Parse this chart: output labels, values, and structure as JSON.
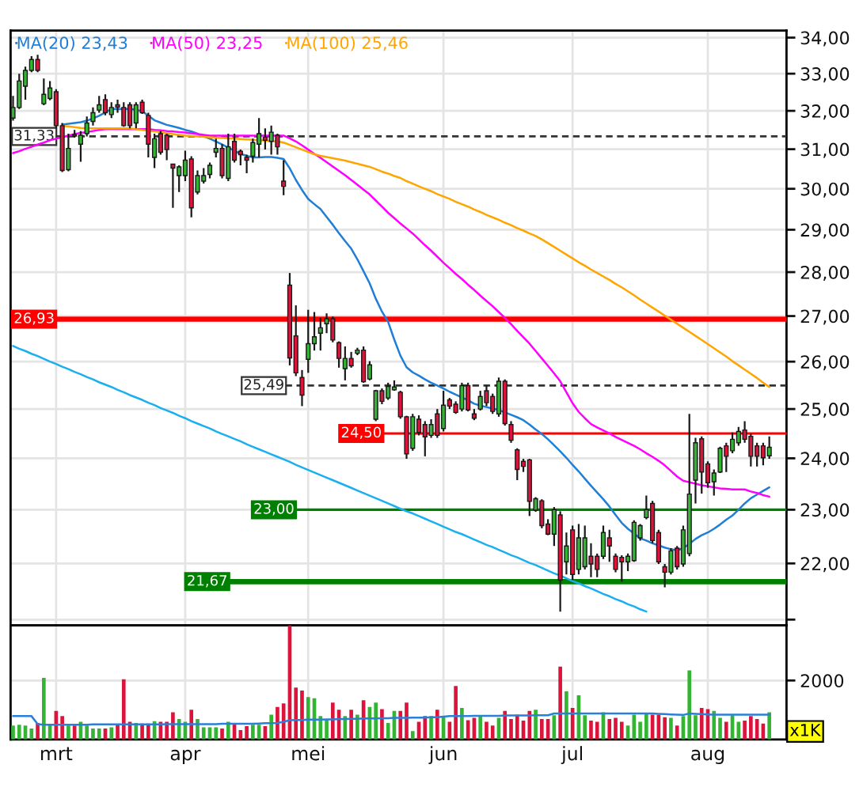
{
  "chart_data": [
    {
      "type": "candlestick",
      "categories": [
        null,
        null,
        null,
        null,
        null,
        null,
        null,
        "mrt",
        null,
        null,
        null,
        null,
        null,
        null,
        null,
        null,
        null,
        null,
        null,
        null,
        null,
        null,
        null,
        null,
        null,
        null,
        null,
        null,
        "apr",
        null,
        null,
        null,
        null,
        null,
        null,
        null,
        null,
        null,
        null,
        null,
        null,
        null,
        null,
        null,
        null,
        null,
        null,
        null,
        "mei",
        null,
        null,
        null,
        null,
        null,
        null,
        null,
        null,
        null,
        null,
        null,
        null,
        null,
        null,
        null,
        null,
        null,
        null,
        null,
        null,
        null,
        "jun",
        null,
        null,
        null,
        null,
        null,
        null,
        null,
        null,
        null,
        null,
        null,
        null,
        null,
        null,
        null,
        null,
        null,
        null,
        null,
        null,
        "jul",
        null,
        null,
        null,
        null,
        null,
        null,
        null,
        null,
        null,
        null,
        null,
        null,
        null,
        null,
        null,
        null,
        null,
        null,
        null,
        null,
        null,
        "aug",
        null,
        null,
        null,
        null,
        null,
        null,
        null,
        null,
        null,
        null
      ],
      "ohlc": [
        [
          31.81,
          32.4,
          31.74,
          32.09
        ],
        [
          32.09,
          33.0,
          32.05,
          32.8
        ],
        [
          32.66,
          33.19,
          32.3,
          33.09
        ],
        [
          33.09,
          33.48,
          33.04,
          33.39
        ],
        [
          33.39,
          33.52,
          33.04,
          33.09
        ],
        [
          32.19,
          32.87,
          32.15,
          32.44
        ],
        [
          32.33,
          32.8,
          32.28,
          32.61
        ],
        [
          32.51,
          32.58,
          31.54,
          31.61
        ],
        [
          31.61,
          31.68,
          30.42,
          30.46
        ],
        [
          30.48,
          31.4,
          30.44,
          31.02
        ],
        [
          31.38,
          31.5,
          31.3,
          31.34
        ],
        [
          31.13,
          31.47,
          30.68,
          31.36
        ],
        [
          31.4,
          31.85,
          31.33,
          31.68
        ],
        [
          31.72,
          32.09,
          31.61,
          31.95
        ],
        [
          32.02,
          32.4,
          31.95,
          32.16
        ],
        [
          32.3,
          32.44,
          31.88,
          31.95
        ],
        [
          31.9,
          32.23,
          31.81,
          32.09
        ],
        [
          32.16,
          32.3,
          31.95,
          32.1
        ],
        [
          32.09,
          32.23,
          31.58,
          31.61
        ],
        [
          32.16,
          32.23,
          31.54,
          31.61
        ],
        [
          31.68,
          32.23,
          31.54,
          32.16
        ],
        [
          32.23,
          32.3,
          31.92,
          31.95
        ],
        [
          31.88,
          31.95,
          30.79,
          31.13
        ],
        [
          30.79,
          31.4,
          30.52,
          31.27
        ],
        [
          31.4,
          31.47,
          30.86,
          30.92
        ],
        [
          31.36,
          31.4,
          30.72,
          30.99
        ],
        [
          30.62,
          30.63,
          29.53,
          30.52
        ],
        [
          30.33,
          30.59,
          29.92,
          30.55
        ],
        [
          30.33,
          30.96,
          30.19,
          30.72
        ],
        [
          30.75,
          30.82,
          29.3,
          29.53
        ],
        [
          29.92,
          30.46,
          29.86,
          30.33
        ],
        [
          30.19,
          30.52,
          30.13,
          30.33
        ],
        [
          30.36,
          30.66,
          30.26,
          30.59
        ],
        [
          30.92,
          31.27,
          30.79,
          31.02
        ],
        [
          31.02,
          31.13,
          30.26,
          30.33
        ],
        [
          30.26,
          31.4,
          30.19,
          31.06
        ],
        [
          31.2,
          31.4,
          30.66,
          30.72
        ],
        [
          30.95,
          30.99,
          30.59,
          30.86
        ],
        [
          30.79,
          30.86,
          30.39,
          30.72
        ],
        [
          30.82,
          31.27,
          30.66,
          31.17
        ],
        [
          31.13,
          31.81,
          30.79,
          31.4
        ],
        [
          31.31,
          31.54,
          30.99,
          31.23
        ],
        [
          31.2,
          31.61,
          30.86,
          31.44
        ],
        [
          31.36,
          31.4,
          30.86,
          31.06
        ],
        [
          30.19,
          30.72,
          29.84,
          30.06
        ],
        [
          27.7,
          27.98,
          25.92,
          26.08
        ],
        [
          26.56,
          27.24,
          25.69,
          25.76
        ],
        [
          25.66,
          25.82,
          25.06,
          25.29
        ],
        [
          26.05,
          27.14,
          25.76,
          26.39
        ],
        [
          26.39,
          27.09,
          26.24,
          26.54
        ],
        [
          26.62,
          26.96,
          26.24,
          26.74
        ],
        [
          26.83,
          27.06,
          26.62,
          26.94
        ],
        [
          26.94,
          26.99,
          26.42,
          26.47
        ],
        [
          26.41,
          26.44,
          25.87,
          26.07
        ],
        [
          25.85,
          26.33,
          25.6,
          26.07
        ],
        [
          26.07,
          26.21,
          25.87,
          25.91
        ],
        [
          26.18,
          26.3,
          26.14,
          26.25
        ],
        [
          26.25,
          26.33,
          25.55,
          25.57
        ],
        [
          25.63,
          26.01,
          25.6,
          25.93
        ],
        [
          24.79,
          25.4,
          24.75,
          25.38
        ],
        [
          25.38,
          25.43,
          25.1,
          25.16
        ],
        [
          25.23,
          25.55,
          25.19,
          25.47
        ],
        [
          25.4,
          25.6,
          25.38,
          25.46
        ],
        [
          25.35,
          25.38,
          24.8,
          24.84
        ],
        [
          24.84,
          24.86,
          23.99,
          24.09
        ],
        [
          24.2,
          24.9,
          24.15,
          24.84
        ],
        [
          24.79,
          24.87,
          24.46,
          24.52
        ],
        [
          24.68,
          24.75,
          24.04,
          24.43
        ],
        [
          24.46,
          24.79,
          24.41,
          24.68
        ],
        [
          24.9,
          25.0,
          24.41,
          24.46
        ],
        [
          24.6,
          25.38,
          24.54,
          25.08
        ],
        [
          25.19,
          25.23,
          25.0,
          25.06
        ],
        [
          25.1,
          25.16,
          24.9,
          24.93
        ],
        [
          25.0,
          25.55,
          24.95,
          25.49
        ],
        [
          25.49,
          25.55,
          24.95,
          24.98
        ],
        [
          24.9,
          25.0,
          24.77,
          24.81
        ],
        [
          25.0,
          25.38,
          24.97,
          25.26
        ],
        [
          25.38,
          25.49,
          25.06,
          25.13
        ],
        [
          25.26,
          25.32,
          24.9,
          24.95
        ],
        [
          24.9,
          25.66,
          24.84,
          25.58
        ],
        [
          25.58,
          25.62,
          24.66,
          24.7
        ],
        [
          24.68,
          24.75,
          24.31,
          24.36
        ],
        [
          24.17,
          24.2,
          23.57,
          23.78
        ],
        [
          23.94,
          23.99,
          23.73,
          23.84
        ],
        [
          23.97,
          23.99,
          22.88,
          23.16
        ],
        [
          22.99,
          23.24,
          22.96,
          23.21
        ],
        [
          23.17,
          23.2,
          22.65,
          22.7
        ],
        [
          22.73,
          22.82,
          22.52,
          22.54
        ],
        [
          22.54,
          23.05,
          22.32,
          23.0
        ],
        [
          22.9,
          22.97,
          21.14,
          21.7
        ],
        [
          22.03,
          22.57,
          21.8,
          22.32
        ],
        [
          22.62,
          22.7,
          21.7,
          21.8
        ],
        [
          21.89,
          22.73,
          21.8,
          22.47
        ],
        [
          21.94,
          22.7,
          21.89,
          22.47
        ],
        [
          22.13,
          22.37,
          21.75,
          21.99
        ],
        [
          22.13,
          22.18,
          21.75,
          21.89
        ],
        [
          22.13,
          22.7,
          22.08,
          22.57
        ],
        [
          22.47,
          22.62,
          22.03,
          22.32
        ],
        [
          22.13,
          22.18,
          21.84,
          21.89
        ],
        [
          22.11,
          22.15,
          21.67,
          22.03
        ],
        [
          22.03,
          22.18,
          21.86,
          22.13
        ],
        [
          22.05,
          22.8,
          22.03,
          22.76
        ],
        [
          22.47,
          22.73,
          22.42,
          22.7
        ],
        [
          22.85,
          23.27,
          22.82,
          23.0
        ],
        [
          23.12,
          23.17,
          22.37,
          22.42
        ],
        [
          22.57,
          22.62,
          21.99,
          22.03
        ],
        [
          21.94,
          21.99,
          21.57,
          21.84
        ],
        [
          21.84,
          22.28,
          21.8,
          22.23
        ],
        [
          22.28,
          22.32,
          21.89,
          21.94
        ],
        [
          21.99,
          22.7,
          21.94,
          22.62
        ],
        [
          22.18,
          24.9,
          22.13,
          23.3
        ],
        [
          23.57,
          24.41,
          23.12,
          24.31
        ],
        [
          24.39,
          24.44,
          23.31,
          23.73
        ],
        [
          23.89,
          23.94,
          23.42,
          23.52
        ],
        [
          23.54,
          23.78,
          23.27,
          23.71
        ],
        [
          23.73,
          24.23,
          23.71,
          24.2
        ],
        [
          24.25,
          24.31,
          23.73,
          24.04
        ],
        [
          24.15,
          24.52,
          24.1,
          24.38
        ],
        [
          24.31,
          24.63,
          24.25,
          24.54
        ],
        [
          24.57,
          24.75,
          24.31,
          24.38
        ],
        [
          24.44,
          24.49,
          23.84,
          24.04
        ],
        [
          24.25,
          24.31,
          23.84,
          24.04
        ],
        [
          24.25,
          24.31,
          23.86,
          24.01
        ],
        [
          24.05,
          24.44,
          23.99,
          24.22
        ]
      ],
      "colors": [
        "#33b533",
        "#33b533",
        "#33b533",
        "#33b533",
        "#dc143c",
        "#33b533",
        "#33b533",
        "#dc143c",
        "#dc143c",
        "#33b533",
        "#dc143c",
        "#33b533",
        "#33b533",
        "#33b533",
        "#33b533",
        "#dc143c",
        "#33b533",
        "#dc143c",
        "#dc143c",
        "#dc143c",
        "#33b533",
        "#dc143c",
        "#dc143c",
        "#33b533",
        "#dc143c",
        "#dc143c",
        "#dc143c",
        "#33b533",
        "#33b533",
        "#dc143c",
        "#33b533",
        "#33b533",
        "#33b533",
        "#33b533",
        "#dc143c",
        "#33b533",
        "#dc143c",
        "#dc143c",
        "#dc143c",
        "#33b533",
        "#33b533",
        "#dc143c",
        "#33b533",
        "#dc143c",
        "#dc143c",
        "#dc143c",
        "#dc143c",
        "#dc143c",
        "#33b533",
        "#33b533",
        "#33b533",
        "#33b533",
        "#dc143c",
        "#dc143c",
        "#33b533",
        "#dc143c",
        "#33b533",
        "#dc143c",
        "#33b533",
        "#33b533",
        "#dc143c",
        "#33b533",
        "#33b533",
        "#dc143c",
        "#dc143c",
        "#33b533",
        "#dc143c",
        "#dc143c",
        "#33b533",
        "#dc143c",
        "#33b533",
        "#dc143c",
        "#dc143c",
        "#33b533",
        "#dc143c",
        "#dc143c",
        "#33b533",
        "#dc143c",
        "#dc143c",
        "#33b533",
        "#dc143c",
        "#dc143c",
        "#dc143c",
        "#dc143c",
        "#dc143c",
        "#33b533",
        "#dc143c",
        "#dc143c",
        "#33b533",
        "#dc143c",
        "#33b533",
        "#dc143c",
        "#33b533",
        "#33b533",
        "#dc143c",
        "#dc143c",
        "#33b533",
        "#dc143c",
        "#dc143c",
        "#dc143c",
        "#33b533",
        "#33b533",
        "#33b533",
        "#33b533",
        "#dc143c",
        "#dc143c",
        "#dc143c",
        "#33b533",
        "#dc143c",
        "#33b533",
        "#33b533",
        "#33b533",
        "#dc143c",
        "#dc143c",
        "#33b533",
        "#33b533",
        "#dc143c",
        "#33b533",
        "#33b533",
        "#dc143c",
        "#dc143c",
        "#dc143c",
        "#dc143c",
        "#33b533"
      ],
      "series": [
        {
          "type": "line",
          "name": "MA(20) 23,43",
          "color": "#1f7fd6",
          "values": [
            null,
            null,
            null,
            null,
            null,
            null,
            null,
            null,
            31.64,
            31.66,
            31.68,
            31.7,
            31.74,
            31.8,
            31.87,
            31.96,
            32.05,
            32.05,
            32.05,
            32.05,
            32.03,
            31.99,
            31.87,
            31.75,
            31.69,
            31.63,
            31.59,
            31.55,
            31.5,
            31.46,
            31.4,
            31.33,
            31.27,
            31.2,
            31.12,
            31.04,
            30.96,
            30.88,
            30.83,
            30.79,
            30.79,
            30.8,
            30.8,
            30.78,
            30.75,
            30.51,
            30.22,
            29.97,
            29.75,
            29.62,
            29.5,
            29.31,
            29.12,
            28.92,
            28.73,
            28.55,
            28.3,
            28.02,
            27.74,
            27.39,
            27.1,
            26.87,
            26.48,
            26.13,
            25.88,
            25.77,
            25.7,
            25.62,
            25.55,
            25.49,
            25.43,
            25.36,
            25.3,
            25.24,
            25.18,
            25.11,
            25.07,
            25.04,
            25.01,
            24.98,
            24.93,
            24.88,
            24.83,
            24.77,
            24.68,
            24.58,
            24.49,
            24.38,
            24.26,
            24.14,
            24.01,
            23.87,
            23.74,
            23.6,
            23.46,
            23.33,
            23.2,
            23.06,
            22.9,
            22.75,
            22.64,
            22.55,
            22.46,
            22.42,
            22.37,
            22.33,
            22.29,
            22.26,
            22.24,
            22.28,
            22.36,
            22.45,
            22.52,
            22.57,
            22.64,
            22.72,
            22.81,
            22.89,
            23.0,
            23.12,
            23.22,
            23.29,
            23.36,
            23.43
          ]
        },
        {
          "type": "line",
          "name": "MA(50) 23,25",
          "color": "#ff00ff",
          "values": [
            30.9,
            30.95,
            31.01,
            31.06,
            31.12,
            31.17,
            31.23,
            31.27,
            31.31,
            31.35,
            31.39,
            31.42,
            31.44,
            31.47,
            31.5,
            31.52,
            31.52,
            31.52,
            31.52,
            31.52,
            31.52,
            31.52,
            31.52,
            31.5,
            31.49,
            31.47,
            31.46,
            31.44,
            31.43,
            31.41,
            31.39,
            31.37,
            31.35,
            31.35,
            31.35,
            31.35,
            31.35,
            31.35,
            31.35,
            31.35,
            31.35,
            31.35,
            31.35,
            31.35,
            31.35,
            31.28,
            31.2,
            31.1,
            30.99,
            30.88,
            30.78,
            30.67,
            30.56,
            30.45,
            30.34,
            30.22,
            30.1,
            29.98,
            29.86,
            29.71,
            29.56,
            29.41,
            29.28,
            29.15,
            29.03,
            28.91,
            28.77,
            28.63,
            28.5,
            28.36,
            28.22,
            28.09,
            27.96,
            27.84,
            27.71,
            27.59,
            27.46,
            27.34,
            27.22,
            27.09,
            26.96,
            26.82,
            26.67,
            26.53,
            26.39,
            26.23,
            26.07,
            25.91,
            25.75,
            25.58,
            25.35,
            25.12,
            24.94,
            24.81,
            24.69,
            24.62,
            24.56,
            24.5,
            24.43,
            24.37,
            24.31,
            24.25,
            24.18,
            24.1,
            24.03,
            23.95,
            23.86,
            23.75,
            23.64,
            23.56,
            23.53,
            23.5,
            23.47,
            23.45,
            23.43,
            23.41,
            23.4,
            23.39,
            23.39,
            23.39,
            23.35,
            23.32,
            23.28,
            23.25
          ]
        },
        {
          "type": "line",
          "name": "MA(100) 25,46",
          "color": "#ffa500",
          "values": [
            null,
            null,
            null,
            null,
            null,
            null,
            null,
            null,
            31.6,
            31.59,
            31.57,
            31.55,
            31.54,
            31.54,
            31.54,
            31.54,
            31.54,
            31.54,
            31.54,
            31.54,
            31.52,
            31.5,
            31.48,
            31.46,
            31.44,
            31.41,
            31.39,
            31.37,
            31.35,
            31.34,
            31.33,
            31.32,
            31.31,
            31.3,
            31.29,
            31.28,
            31.27,
            31.26,
            31.25,
            31.24,
            31.23,
            31.22,
            31.21,
            31.2,
            31.17,
            31.11,
            31.05,
            30.99,
            30.93,
            30.87,
            30.83,
            30.8,
            30.77,
            30.74,
            30.71,
            30.67,
            30.63,
            30.59,
            30.55,
            30.49,
            30.43,
            30.38,
            30.32,
            30.27,
            30.19,
            30.13,
            30.06,
            30.0,
            29.94,
            29.87,
            29.81,
            29.75,
            29.68,
            29.62,
            29.56,
            29.49,
            29.43,
            29.36,
            29.3,
            29.24,
            29.17,
            29.11,
            29.04,
            28.98,
            28.91,
            28.85,
            28.77,
            28.68,
            28.59,
            28.5,
            28.41,
            28.32,
            28.23,
            28.15,
            28.06,
            27.98,
            27.9,
            27.82,
            27.73,
            27.65,
            27.56,
            27.47,
            27.37,
            27.28,
            27.19,
            27.1,
            27.01,
            26.92,
            26.83,
            26.74,
            26.65,
            26.56,
            26.47,
            26.38,
            26.29,
            26.2,
            26.11,
            26.01,
            25.92,
            25.83,
            25.74,
            25.65,
            25.55,
            25.46
          ]
        },
        {
          "type": "line",
          "color": "#1ab0f0",
          "values": [
            26.34,
            26.28,
            26.23,
            26.17,
            26.12,
            26.06,
            26.0,
            25.95,
            25.89,
            25.84,
            25.78,
            25.73,
            25.67,
            25.62,
            25.56,
            25.51,
            25.46,
            25.4,
            25.35,
            25.29,
            25.24,
            25.19,
            25.13,
            25.08,
            25.02,
            24.97,
            24.92,
            24.86,
            24.81,
            24.75,
            24.7,
            24.65,
            24.6,
            24.54,
            24.49,
            24.44,
            24.39,
            24.34,
            24.28,
            24.23,
            24.18,
            24.13,
            24.08,
            24.03,
            23.98,
            23.93,
            23.87,
            23.82,
            23.77,
            23.72,
            23.67,
            23.62,
            23.57,
            23.52,
            23.47,
            23.42,
            23.37,
            23.32,
            23.27,
            23.22,
            23.17,
            23.12,
            23.07,
            23.02,
            22.97,
            22.93,
            22.88,
            22.83,
            22.78,
            22.73,
            22.68,
            22.63,
            22.58,
            22.54,
            22.49,
            22.44,
            22.39,
            22.34,
            22.3,
            22.25,
            22.2,
            22.15,
            22.11,
            22.06,
            22.01,
            21.97,
            21.92,
            21.87,
            21.82,
            21.78,
            21.73,
            21.68,
            21.64,
            21.59,
            21.55,
            21.5,
            21.45,
            21.41,
            21.36,
            21.32,
            21.27,
            21.23,
            21.18,
            21.14,
            null,
            null,
            null,
            null,
            null,
            null,
            null,
            null,
            null,
            null,
            null,
            null,
            null,
            null,
            null,
            null,
            null,
            null,
            null,
            null
          ]
        }
      ],
      "ref_lines": [
        {
          "axis": "y",
          "value": 31.33,
          "label": "31,33",
          "color": "#333333",
          "line_style": "dashed"
        },
        {
          "axis": "y",
          "value": 26.93,
          "label": "26,93",
          "color": "#ff0000",
          "line_style": "solid"
        },
        {
          "axis": "y",
          "value": 25.49,
          "label": "25,49",
          "color": "#333333",
          "line_style": "dashed"
        },
        {
          "axis": "y",
          "value": 24.5,
          "label": "24,50",
          "color": "#ff0000",
          "line_style": "solid"
        },
        {
          "axis": "y",
          "value": 23.0,
          "label": "23,00",
          "color": "#008000",
          "line_style": "solid"
        },
        {
          "axis": "y",
          "value": 21.67,
          "label": "21,67",
          "color": "#008000",
          "line_style": "solid"
        }
      ],
      "log": true,
      "ylim": [
        20.9,
        34.2
      ],
      "yticks": [
        {
          "value": 21,
          "label": null
        },
        {
          "value": 22,
          "label": "22,00"
        },
        {
          "value": 23,
          "label": "23,00"
        },
        {
          "value": 24,
          "label": "24,00"
        },
        {
          "value": 25,
          "label": "25,00"
        },
        {
          "value": 26,
          "label": "26,00"
        },
        {
          "value": 27,
          "label": "27,00"
        },
        {
          "value": 28,
          "label": "28,00"
        },
        {
          "value": 29,
          "label": "29,00"
        },
        {
          "value": 30,
          "label": "30,00"
        },
        {
          "value": 31,
          "label": "31,00"
        },
        {
          "value": 32,
          "label": "32,00"
        },
        {
          "value": 33,
          "label": "33,00"
        },
        {
          "value": 34,
          "label": "34,00"
        }
      ],
      "grid": true,
      "legend": "top left",
      "tick_labels": "y"
    },
    {
      "type": "bar",
      "categories": [
        null,
        null,
        null,
        null,
        null,
        null,
        null,
        "mrt",
        null,
        null,
        null,
        null,
        null,
        null,
        null,
        null,
        null,
        null,
        null,
        null,
        null,
        null,
        null,
        null,
        null,
        null,
        null,
        null,
        "apr",
        null,
        null,
        null,
        null,
        null,
        null,
        null,
        null,
        null,
        null,
        null,
        null,
        null,
        null,
        null,
        null,
        null,
        null,
        null,
        "mei",
        null,
        null,
        null,
        null,
        null,
        null,
        null,
        null,
        null,
        null,
        null,
        null,
        null,
        null,
        null,
        null,
        null,
        null,
        null,
        null,
        null,
        "jun",
        null,
        null,
        null,
        null,
        null,
        null,
        null,
        null,
        null,
        null,
        null,
        null,
        null,
        null,
        null,
        null,
        null,
        null,
        null,
        null,
        "jul",
        null,
        null,
        null,
        null,
        null,
        null,
        null,
        null,
        null,
        null,
        null,
        null,
        null,
        null,
        null,
        null,
        null,
        null,
        null,
        null,
        null,
        "aug",
        null,
        null,
        null,
        null,
        null,
        null,
        null,
        null,
        null,
        null
      ],
      "series": [
        {
          "type": "bar",
          "values": [
            470,
            500,
            470,
            370,
            560,
            2090,
            500,
            970,
            790,
            470,
            470,
            600,
            470,
            370,
            370,
            370,
            410,
            500,
            2040,
            600,
            560,
            540,
            540,
            620,
            600,
            600,
            920,
            690,
            600,
            1010,
            690,
            410,
            410,
            410,
            370,
            600,
            540,
            320,
            450,
            500,
            500,
            450,
            840,
            1100,
            1220,
            3870,
            1760,
            1660,
            1440,
            1400,
            790,
            690,
            1250,
            1010,
            790,
            1010,
            840,
            1330,
            1100,
            1250,
            1030,
            560,
            970,
            970,
            1250,
            280,
            600,
            790,
            790,
            1010,
            790,
            600,
            1810,
            1070,
            650,
            730,
            790,
            600,
            470,
            730,
            970,
            690,
            840,
            640,
            970,
            1010,
            690,
            690,
            820,
            2470,
            1630,
            1070,
            1500,
            820,
            640,
            600,
            920,
            690,
            730,
            600,
            470,
            840,
            600,
            880,
            840,
            840,
            750,
            730,
            470,
            790,
            2340,
            820,
            1070,
            1030,
            970,
            730,
            600,
            820,
            600,
            640,
            790,
            690,
            540,
            920
          ],
          "colors": [
            "#33b533",
            "#33b533",
            "#33b533",
            "#33b533",
            "#dc143c",
            "#33b533",
            "#33b533",
            "#dc143c",
            "#dc143c",
            "#33b533",
            "#dc143c",
            "#33b533",
            "#33b533",
            "#33b533",
            "#33b533",
            "#dc143c",
            "#33b533",
            "#dc143c",
            "#dc143c",
            "#dc143c",
            "#33b533",
            "#dc143c",
            "#dc143c",
            "#33b533",
            "#dc143c",
            "#dc143c",
            "#dc143c",
            "#33b533",
            "#33b533",
            "#dc143c",
            "#33b533",
            "#33b533",
            "#33b533",
            "#33b533",
            "#dc143c",
            "#33b533",
            "#dc143c",
            "#dc143c",
            "#dc143c",
            "#33b533",
            "#33b533",
            "#dc143c",
            "#33b533",
            "#dc143c",
            "#dc143c",
            "#dc143c",
            "#dc143c",
            "#dc143c",
            "#33b533",
            "#33b533",
            "#33b533",
            "#33b533",
            "#dc143c",
            "#dc143c",
            "#33b533",
            "#dc143c",
            "#33b533",
            "#dc143c",
            "#33b533",
            "#33b533",
            "#dc143c",
            "#33b533",
            "#33b533",
            "#dc143c",
            "#dc143c",
            "#33b533",
            "#dc143c",
            "#dc143c",
            "#33b533",
            "#dc143c",
            "#33b533",
            "#dc143c",
            "#dc143c",
            "#33b533",
            "#dc143c",
            "#dc143c",
            "#33b533",
            "#dc143c",
            "#dc143c",
            "#33b533",
            "#dc143c",
            "#dc143c",
            "#dc143c",
            "#dc143c",
            "#dc143c",
            "#33b533",
            "#dc143c",
            "#dc143c",
            "#33b533",
            "#dc143c",
            "#33b533",
            "#dc143c",
            "#33b533",
            "#33b533",
            "#dc143c",
            "#dc143c",
            "#33b533",
            "#dc143c",
            "#dc143c",
            "#dc143c",
            "#33b533",
            "#33b533",
            "#33b533",
            "#33b533",
            "#dc143c",
            "#dc143c",
            "#dc143c",
            "#33b533",
            "#dc143c",
            "#33b533",
            "#33b533",
            "#33b533",
            "#dc143c",
            "#dc143c",
            "#33b533",
            "#33b533",
            "#dc143c",
            "#33b533",
            "#33b533",
            "#dc143c",
            "#dc143c",
            "#dc143c",
            "#dc143c",
            "#33b533"
          ]
        },
        {
          "type": "line",
          "color": "#2a7fd8",
          "values": [
            790,
            790,
            790,
            790,
            520,
            500,
            500,
            500,
            500,
            500,
            500,
            500,
            500,
            510,
            510,
            510,
            510,
            510,
            510,
            510,
            510,
            510,
            510,
            510,
            510,
            520,
            520,
            520,
            520,
            520,
            520,
            520,
            520,
            520,
            530,
            530,
            530,
            530,
            530,
            530,
            540,
            550,
            550,
            560,
            600,
            650,
            660,
            660,
            670,
            670,
            670,
            680,
            680,
            690,
            690,
            700,
            700,
            710,
            710,
            710,
            720,
            720,
            730,
            730,
            730,
            740,
            740,
            740,
            750,
            750,
            770,
            790,
            790,
            790,
            790,
            800,
            800,
            800,
            800,
            800,
            810,
            810,
            810,
            810,
            810,
            820,
            820,
            820,
            880,
            880,
            880,
            880,
            880,
            880,
            880,
            880,
            880,
            880,
            880,
            880,
            880,
            880,
            880,
            880,
            880,
            870,
            860,
            850,
            840,
            830,
            880,
            870,
            860,
            850,
            840,
            840,
            840,
            840,
            840,
            840,
            840,
            840,
            840,
            840
          ]
        }
      ],
      "annotations": [
        "x1K"
      ],
      "ylim": [
        0,
        3870
      ],
      "yticks": [
        2000
      ],
      "grid": true
    }
  ]
}
